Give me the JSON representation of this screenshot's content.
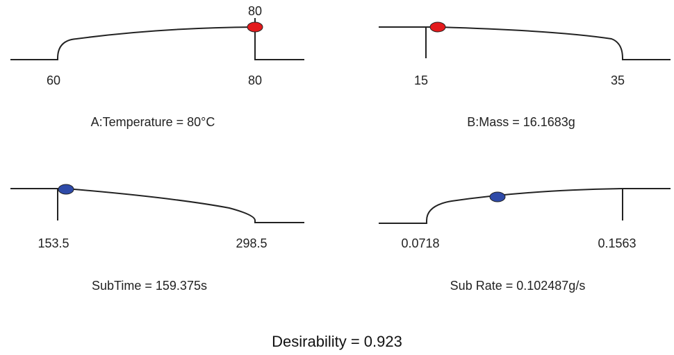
{
  "chart_data": [
    {
      "type": "line",
      "caption": "A:Temperature = 80°C",
      "low_label": "60",
      "high_label": "80",
      "top_label": "80",
      "x_range": [
        60,
        80
      ],
      "optimum": 80,
      "marker_color": "#e31a1c",
      "shape": "increasing-concave"
    },
    {
      "type": "line",
      "caption": "B:Mass = 16.1683g",
      "low_label": "15",
      "high_label": "35",
      "x_range": [
        15,
        35
      ],
      "optimum": 16.1683,
      "marker_color": "#e31a1c",
      "shape": "decreasing-concave"
    },
    {
      "type": "line",
      "caption": "SubTime = 159.375s",
      "low_label": "153.5",
      "high_label": "298.5",
      "x_range": [
        153.5,
        298.5
      ],
      "optimum": 159.375,
      "marker_color": "#2e4aa8",
      "shape": "decreasing-concave"
    },
    {
      "type": "line",
      "caption": "Sub Rate = 0.102487g/s",
      "low_label": "0.0718",
      "high_label": "0.1563",
      "x_range": [
        0.0718,
        0.1563
      ],
      "optimum": 0.102487,
      "marker_color": "#2e4aa8",
      "shape": "increasing-concave"
    }
  ],
  "desirability_text": "Desirability = 0.923"
}
